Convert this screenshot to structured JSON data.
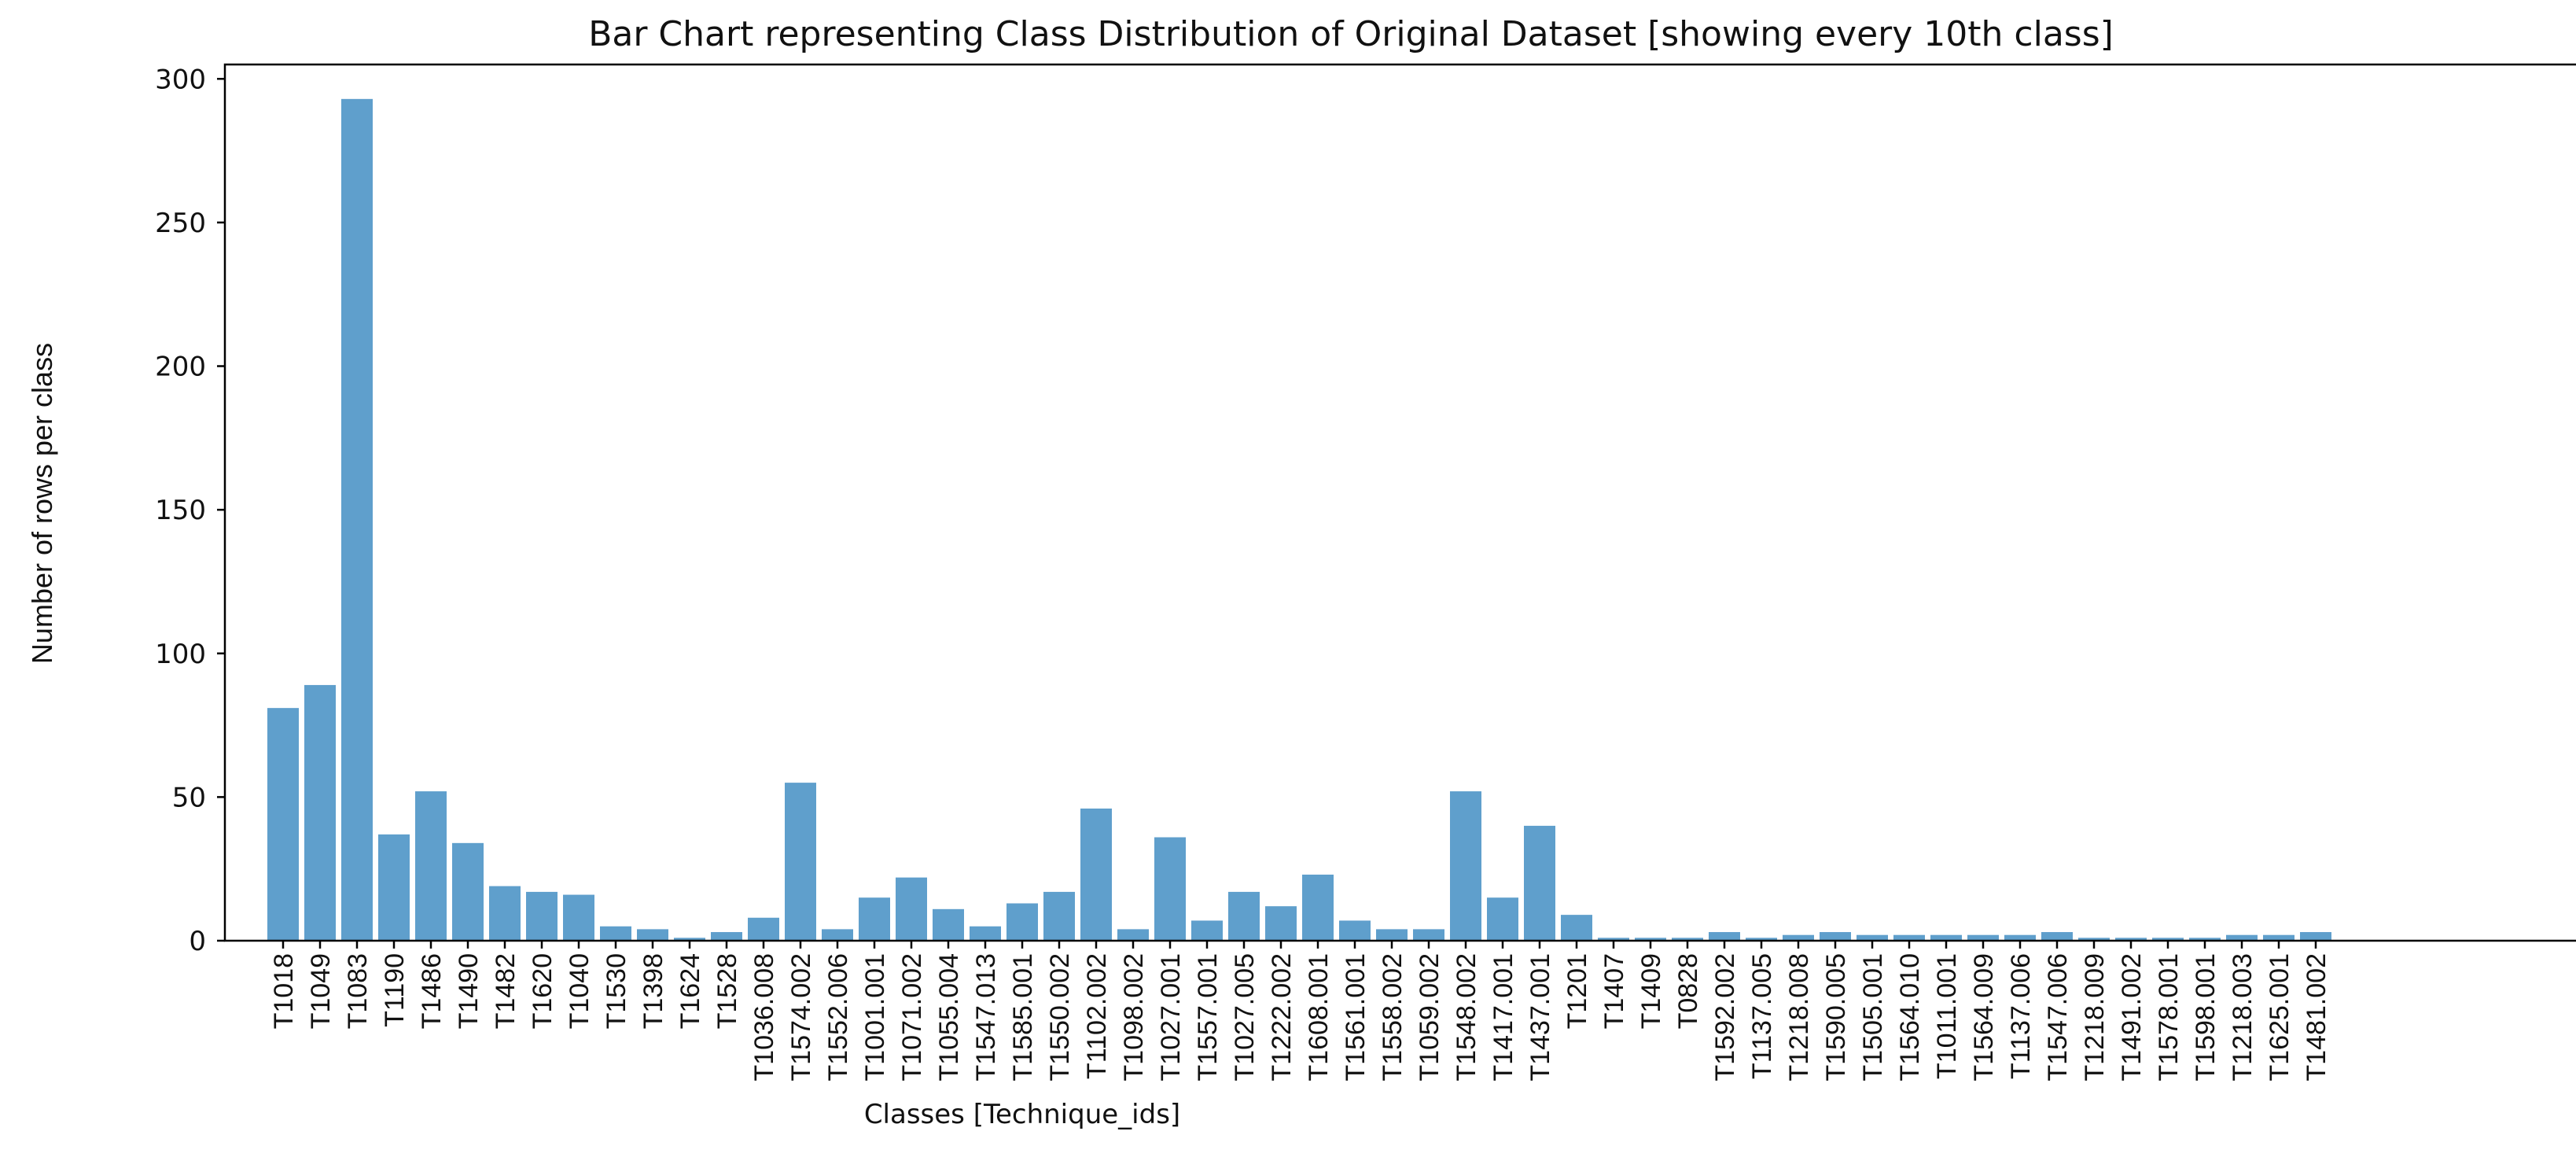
{
  "chart_data": {
    "type": "bar",
    "title": "Bar Chart representing Class Distribution of Original Dataset [showing every 10th class]",
    "xlabel": "Classes [Technique_ids]",
    "ylabel": "Number of rows per class",
    "ylim": [
      0,
      305
    ],
    "yticks": [
      0,
      50,
      100,
      150,
      200,
      250,
      300
    ],
    "grid": false,
    "bar_color": "#5f9fcc",
    "categories": [
      "T1018",
      "T1049",
      "T1083",
      "T1190",
      "T1486",
      "T1490",
      "T1482",
      "T1620",
      "T1040",
      "T1530",
      "T1398",
      "T1624",
      "T1528",
      "T1036.008",
      "T1574.002",
      "T1552.006",
      "T1001.001",
      "T1071.002",
      "T1055.004",
      "T1547.013",
      "T1585.001",
      "T1550.002",
      "T1102.002",
      "T1098.002",
      "T1027.001",
      "T1557.001",
      "T1027.005",
      "T1222.002",
      "T1608.001",
      "T1561.001",
      "T1558.002",
      "T1059.002",
      "T1548.002",
      "T1417.001",
      "T1437.001",
      "T1201",
      "T1407",
      "T1409",
      "T0828",
      "T1592.002",
      "T1137.005",
      "T1218.008",
      "T1590.005",
      "T1505.001",
      "T1564.010",
      "T1011.001",
      "T1564.009",
      "T1137.006",
      "T1547.006",
      "T1218.009",
      "T1491.002",
      "T1578.001",
      "T1598.001",
      "T1218.003",
      "T1625.001",
      "T1481.002"
    ],
    "values": [
      81,
      89,
      293,
      37,
      52,
      34,
      19,
      17,
      16,
      5,
      4,
      1,
      3,
      8,
      55,
      4,
      15,
      22,
      11,
      5,
      13,
      17,
      46,
      4,
      36,
      7,
      17,
      12,
      23,
      7,
      4,
      4,
      52,
      15,
      40,
      9,
      1,
      1,
      1,
      3,
      1,
      2,
      3,
      2,
      2,
      2,
      2,
      2,
      3,
      1,
      1,
      1,
      1,
      2,
      2,
      3
    ]
  }
}
